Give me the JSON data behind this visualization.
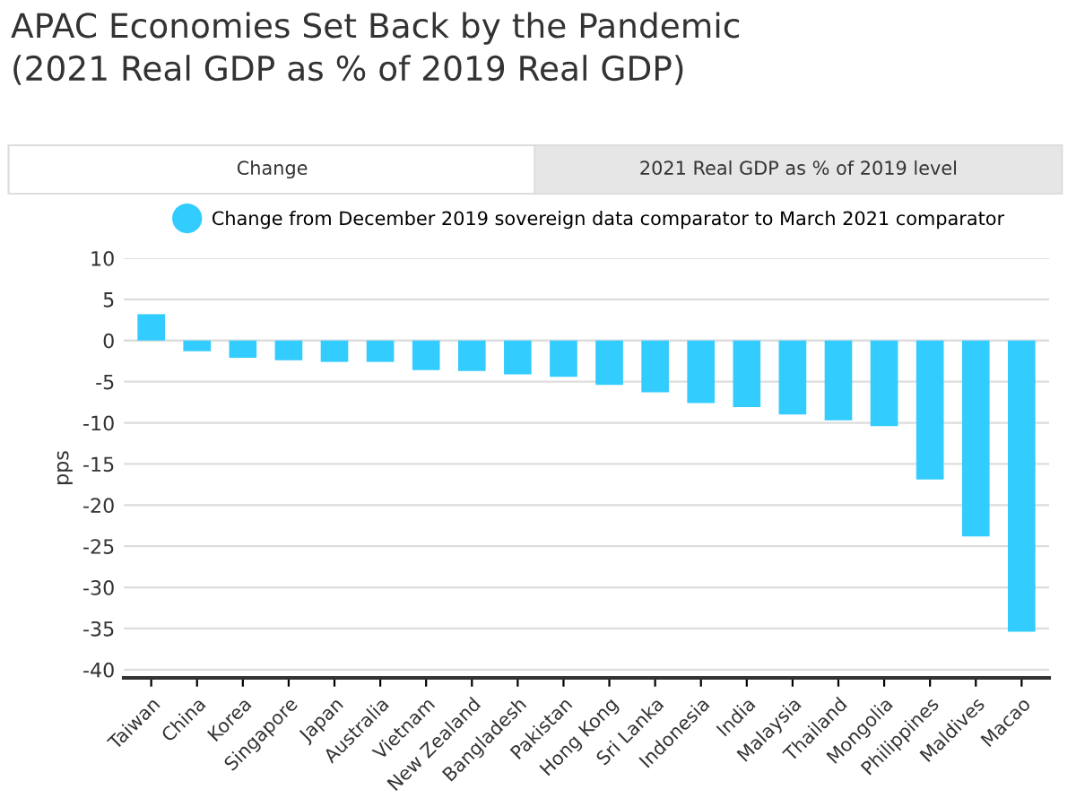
{
  "chart_data": {
    "type": "bar",
    "title": "APAC Economies Set Back by the Pandemic\n(2021 Real GDP as % of 2019 Real GDP)",
    "annotations": [
      "Change",
      "2021 Real GDP as % of 2019 level"
    ],
    "ylabel": "pps",
    "categories": [
      "Taiwan",
      "China",
      "Korea",
      "Singapore",
      "Japan",
      "Australia",
      "Vietnam",
      "New Zealand",
      "Bangladesh",
      "Pakistan",
      "Hong Kong",
      "Sri Lanka",
      "Indonesia",
      "India",
      "Malaysia",
      "Thailand",
      "Mongolia",
      "Philippines",
      "Maldives",
      "Macao"
    ],
    "series": [
      {
        "name": "Change from December 2019 sovereign data comparator to March 2021 comparator",
        "color": "#33ccff",
        "values": [
          3.2,
          -1.3,
          -2.1,
          -2.4,
          -2.6,
          -2.6,
          -3.6,
          -3.7,
          -4.1,
          -4.4,
          -5.4,
          -6.3,
          -7.6,
          -8.1,
          -9.0,
          -9.7,
          -10.4,
          -16.9,
          -23.8,
          -35.4
        ]
      }
    ],
    "ylim": [
      -41,
      10
    ],
    "yticks": [
      -40,
      -35,
      -30,
      -25,
      -20,
      -15,
      -10,
      -5,
      0,
      5,
      10
    ],
    "grid": "y",
    "legend": "top"
  }
}
